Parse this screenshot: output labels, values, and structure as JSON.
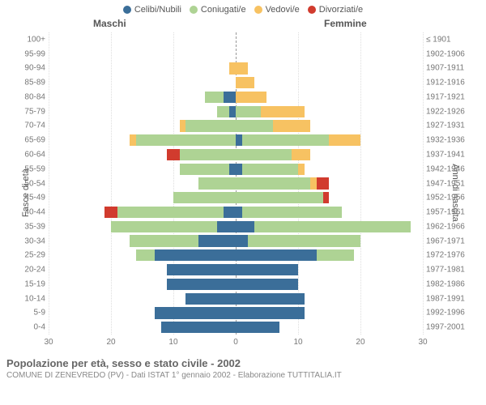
{
  "legend": [
    {
      "label": "Celibi/Nubili",
      "color": "#3b6e99"
    },
    {
      "label": "Coniugati/e",
      "color": "#aed394"
    },
    {
      "label": "Vedovi/e",
      "color": "#f7c262"
    },
    {
      "label": "Divorziati/e",
      "color": "#d13b2e"
    }
  ],
  "headers": {
    "male": "Maschi",
    "female": "Femmine"
  },
  "axis_labels": {
    "left": "Fasce di età",
    "right": "Anni di nascita"
  },
  "colors": {
    "celibi": "#3b6e99",
    "coniugati": "#aed394",
    "vedovi": "#f7c262",
    "divorziati": "#d13b2e",
    "grid": "#e6e6e6",
    "centerline": "#999999",
    "bg": "#ffffff"
  },
  "x_axis": {
    "min": -30,
    "max": 30,
    "ticks": [
      30,
      20,
      10,
      0,
      10,
      20,
      30
    ],
    "tick_positions_pct": [
      0,
      16.67,
      33.33,
      50,
      66.67,
      83.33,
      100
    ]
  },
  "footer": {
    "title": "Popolazione per età, sesso e stato civile - 2002",
    "subtitle": "COMUNE DI ZENEVREDO (PV) - Dati ISTAT 1° gennaio 2002 - Elaborazione TUTTITALIA.IT"
  },
  "rows": [
    {
      "age": "100+",
      "birth": "≤ 1901",
      "m": [
        0,
        0,
        0,
        0
      ],
      "f": [
        0,
        0,
        0,
        0
      ]
    },
    {
      "age": "95-99",
      "birth": "1902-1906",
      "m": [
        0,
        0,
        0,
        0
      ],
      "f": [
        0,
        0,
        0,
        0
      ]
    },
    {
      "age": "90-94",
      "birth": "1907-1911",
      "m": [
        0,
        0,
        1,
        0
      ],
      "f": [
        0,
        0,
        2,
        0
      ]
    },
    {
      "age": "85-89",
      "birth": "1912-1916",
      "m": [
        0,
        0,
        0,
        0
      ],
      "f": [
        0,
        0,
        3,
        0
      ]
    },
    {
      "age": "80-84",
      "birth": "1917-1921",
      "m": [
        2,
        3,
        0,
        0
      ],
      "f": [
        0,
        0,
        5,
        0
      ]
    },
    {
      "age": "75-79",
      "birth": "1922-1926",
      "m": [
        1,
        2,
        0,
        0
      ],
      "f": [
        0,
        4,
        7,
        0
      ]
    },
    {
      "age": "70-74",
      "birth": "1927-1931",
      "m": [
        0,
        8,
        1,
        0
      ],
      "f": [
        0,
        6,
        6,
        0
      ]
    },
    {
      "age": "65-69",
      "birth": "1932-1936",
      "m": [
        0,
        16,
        1,
        0
      ],
      "f": [
        1,
        14,
        5,
        0
      ]
    },
    {
      "age": "60-64",
      "birth": "1937-1941",
      "m": [
        0,
        9,
        0,
        2
      ],
      "f": [
        0,
        9,
        3,
        0
      ]
    },
    {
      "age": "55-59",
      "birth": "1942-1946",
      "m": [
        1,
        8,
        0,
        0
      ],
      "f": [
        1,
        9,
        1,
        0
      ]
    },
    {
      "age": "50-54",
      "birth": "1947-1951",
      "m": [
        0,
        6,
        0,
        0
      ],
      "f": [
        0,
        12,
        1,
        2
      ]
    },
    {
      "age": "45-49",
      "birth": "1952-1956",
      "m": [
        0,
        10,
        0,
        0
      ],
      "f": [
        0,
        14,
        0,
        1
      ]
    },
    {
      "age": "40-44",
      "birth": "1957-1961",
      "m": [
        2,
        17,
        0,
        2
      ],
      "f": [
        1,
        16,
        0,
        0
      ]
    },
    {
      "age": "35-39",
      "birth": "1962-1966",
      "m": [
        3,
        17,
        0,
        0
      ],
      "f": [
        3,
        25,
        0,
        0
      ]
    },
    {
      "age": "30-34",
      "birth": "1967-1971",
      "m": [
        6,
        11,
        0,
        0
      ],
      "f": [
        2,
        18,
        0,
        0
      ]
    },
    {
      "age": "25-29",
      "birth": "1972-1976",
      "m": [
        13,
        3,
        0,
        0
      ],
      "f": [
        13,
        6,
        0,
        0
      ]
    },
    {
      "age": "20-24",
      "birth": "1977-1981",
      "m": [
        11,
        0,
        0,
        0
      ],
      "f": [
        10,
        0,
        0,
        0
      ]
    },
    {
      "age": "15-19",
      "birth": "1982-1986",
      "m": [
        11,
        0,
        0,
        0
      ],
      "f": [
        10,
        0,
        0,
        0
      ]
    },
    {
      "age": "10-14",
      "birth": "1987-1991",
      "m": [
        8,
        0,
        0,
        0
      ],
      "f": [
        11,
        0,
        0,
        0
      ]
    },
    {
      "age": "5-9",
      "birth": "1992-1996",
      "m": [
        13,
        0,
        0,
        0
      ],
      "f": [
        11,
        0,
        0,
        0
      ]
    },
    {
      "age": "0-4",
      "birth": "1997-2001",
      "m": [
        12,
        0,
        0,
        0
      ],
      "f": [
        7,
        0,
        0,
        0
      ]
    }
  ]
}
